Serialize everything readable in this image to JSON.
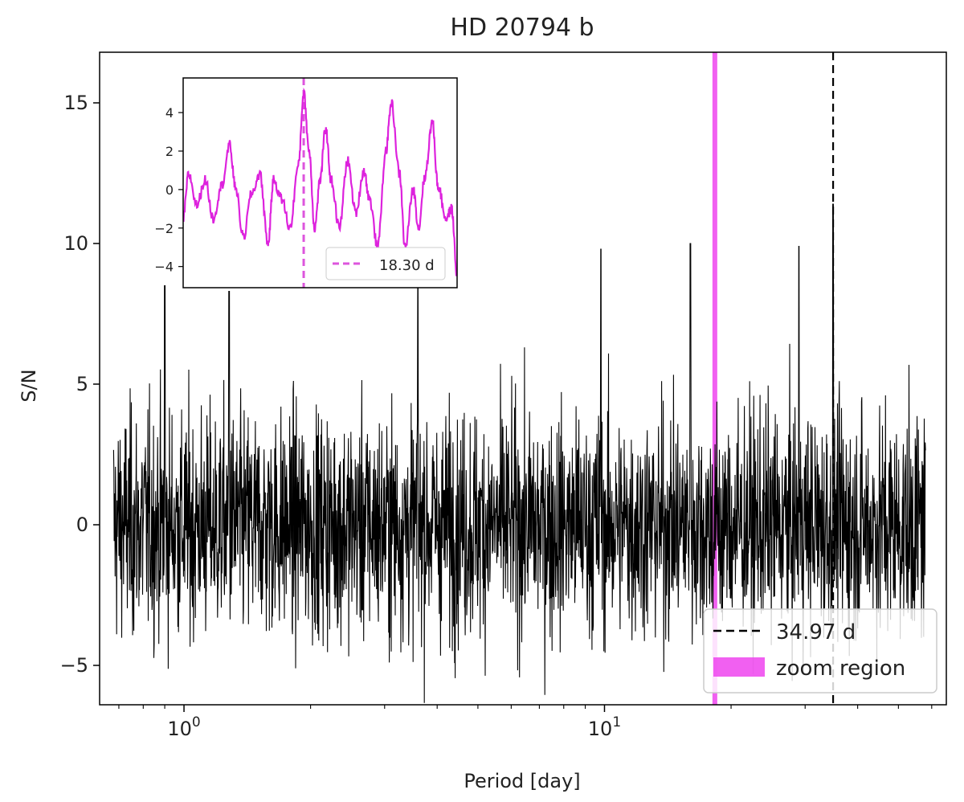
{
  "chart_data": {
    "type": "line",
    "title": "HD 20794 b",
    "xlabel": "Period [day]",
    "ylabel": "S/N",
    "xscale": "log",
    "xlim": [
      0.63,
      65
    ],
    "ylim": [
      -6.4,
      16.8
    ],
    "x_ticks": [
      {
        "value": 1,
        "base": "10",
        "exp": "0"
      },
      {
        "value": 10,
        "base": "10",
        "exp": "1"
      }
    ],
    "y_ticks": [
      {
        "value": -5,
        "label": "−5"
      },
      {
        "value": 0,
        "label": "0"
      },
      {
        "value": 5,
        "label": "5"
      },
      {
        "value": 10,
        "label": "10"
      },
      {
        "value": 15,
        "label": "15"
      }
    ],
    "series": [
      {
        "color": "#000000",
        "x_range": [
          0.68,
          58
        ],
        "notable_peaks": [
          {
            "x": 0.9,
            "y": 8.5
          },
          {
            "x": 1.28,
            "y": 8.3
          },
          {
            "x": 3.6,
            "y": 8.5
          },
          {
            "x": 9.8,
            "y": 9.8
          },
          {
            "x": 16.0,
            "y": 10.0
          },
          {
            "x": 29.0,
            "y": 9.9
          },
          {
            "x": 34.97,
            "y": 11.4
          }
        ]
      }
    ],
    "vlines": [
      {
        "x": 34.97,
        "color": "#000000",
        "style": "dashed"
      }
    ],
    "zoom_band": {
      "x": 18.3,
      "color": "#ee44ee"
    },
    "legend": {
      "position": "lower-right",
      "entries": [
        {
          "label": "34.97 d",
          "kind": "dashed-line",
          "color": "#000000"
        },
        {
          "label": "zoom region",
          "kind": "patch",
          "color": "#ee44ee"
        }
      ]
    },
    "inset": {
      "position": "upper-left",
      "ylim": [
        -5.1,
        5.8
      ],
      "y_ticks": [
        {
          "value": -4,
          "label": "−4"
        },
        {
          "value": -2,
          "label": "−2"
        },
        {
          "value": 0,
          "label": "0"
        },
        {
          "value": 2,
          "label": "2"
        },
        {
          "value": 4,
          "label": "4"
        }
      ],
      "series": [
        {
          "color": "#dd22dd",
          "points": [
            [
              0.0,
              -1.5
            ],
            [
              0.02,
              0.8
            ],
            [
              0.05,
              -0.8
            ],
            [
              0.08,
              0.5
            ],
            [
              0.11,
              -1.5
            ],
            [
              0.14,
              0.2
            ],
            [
              0.17,
              2.3
            ],
            [
              0.19,
              0.2
            ],
            [
              0.22,
              -2.5
            ],
            [
              0.25,
              -0.2
            ],
            [
              0.28,
              0.8
            ],
            [
              0.31,
              -2.8
            ],
            [
              0.33,
              0.5
            ],
            [
              0.36,
              -0.5
            ],
            [
              0.39,
              -2.0
            ],
            [
              0.42,
              1.2
            ],
            [
              0.44,
              5.0
            ],
            [
              0.46,
              2.0
            ],
            [
              0.48,
              -2.0
            ],
            [
              0.5,
              0.5
            ],
            [
              0.52,
              3.2
            ],
            [
              0.54,
              0.5
            ],
            [
              0.57,
              -2.0
            ],
            [
              0.6,
              1.5
            ],
            [
              0.63,
              -1.2
            ],
            [
              0.66,
              1.0
            ],
            [
              0.68,
              -0.5
            ],
            [
              0.71,
              -3.0
            ],
            [
              0.74,
              2.0
            ],
            [
              0.76,
              4.5
            ],
            [
              0.79,
              0.8
            ],
            [
              0.81,
              -3.0
            ],
            [
              0.84,
              0.0
            ],
            [
              0.86,
              -2.0
            ],
            [
              0.88,
              0.5
            ],
            [
              0.91,
              3.5
            ],
            [
              0.93,
              0.2
            ],
            [
              0.96,
              -1.5
            ],
            [
              0.98,
              -1.0
            ],
            [
              1.0,
              -4.5
            ]
          ]
        }
      ],
      "vline": {
        "x": 0.44,
        "color": "#dd55dd",
        "style": "dashed"
      },
      "legend": {
        "label": "18.30 d",
        "kind": "dashed-line",
        "color": "#dd55dd"
      }
    }
  }
}
